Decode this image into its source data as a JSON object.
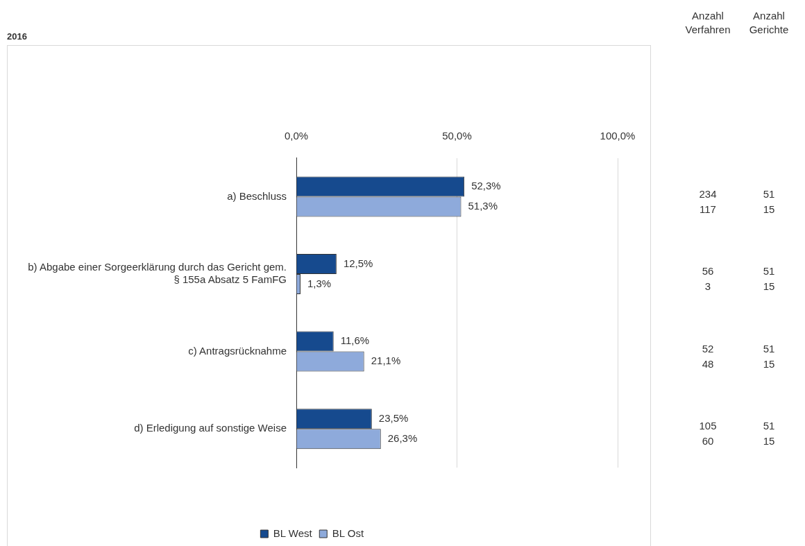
{
  "chart_data": {
    "type": "bar",
    "orientation": "horizontal",
    "title": "2016",
    "categories": [
      "a) Beschluss",
      "b) Abgabe einer Sorgeerklärung durch das Gericht gem. § 155a Absatz 5 FamFG",
      "c) Antragsrücknahme",
      "d) Erledigung auf sonstige Weise"
    ],
    "series": [
      {
        "name": "BL West",
        "color": "#164a8e",
        "values": [
          52.3,
          12.5,
          11.6,
          23.5
        ],
        "value_labels": [
          "52,3%",
          "12,5%",
          "11,6%",
          "23,5%"
        ]
      },
      {
        "name": "BL Ost",
        "color": "#8eaadb",
        "values": [
          51.3,
          1.3,
          21.1,
          26.3
        ],
        "value_labels": [
          "51,3%",
          "1,3%",
          "21,1%",
          "26,3%"
        ]
      }
    ],
    "xlim": [
      0,
      100
    ],
    "xticks": [
      {
        "value": 0,
        "label": "0,0%"
      },
      {
        "value": 50,
        "label": "50,0%"
      },
      {
        "value": 100,
        "label": "100,0%"
      }
    ],
    "grid": "x",
    "legend": "bottom",
    "annotations": [
      "Anzahl Verfahren",
      "Anzahl Gerichte",
      "234",
      "51",
      "117",
      "15",
      "56",
      "51",
      "3",
      "15",
      "52",
      "51",
      "48",
      "15",
      "105",
      "51",
      "60",
      "15"
    ]
  }
}
